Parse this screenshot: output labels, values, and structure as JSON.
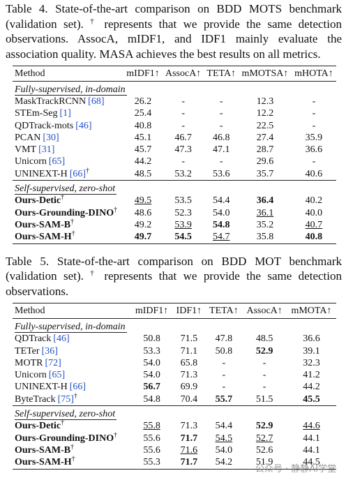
{
  "tables": [
    {
      "caption": {
        "before": "Table 4. State-of-the-art comparison on BDD MOTS benchmark (validation set). ",
        "sup": "†",
        "after": " represents that we provide the same detection observations. AssocA, mIDF1, and IDF1 mainly evaluate the association quality. MASA achieves the best results on all metrics."
      },
      "columns": [
        "Method",
        "mIDF1↑",
        "AssocA↑",
        "TETA↑",
        "mMOTSA↑",
        "mHOTA↑"
      ],
      "groups": [
        {
          "label": "Fully-supervised, in-domain",
          "rows": [
            {
              "method": {
                "name": "MaskTrackRCNN",
                "cite": "[68]"
              },
              "values": [
                "26.2",
                "-",
                "-",
                "12.3",
                "-"
              ]
            },
            {
              "method": {
                "name": "STEm-Seg",
                "cite": "[1]"
              },
              "values": [
                "25.4",
                "-",
                "-",
                "12.2",
                "-"
              ]
            },
            {
              "method": {
                "name": "QDTrack-mots",
                "cite": "[46]"
              },
              "values": [
                "40.8",
                "-",
                "-",
                "22.5",
                "-"
              ]
            },
            {
              "method": {
                "name": "PCAN",
                "cite": "[30]"
              },
              "values": [
                "45.1",
                "46.7",
                "46.8",
                "27.4",
                "35.9"
              ]
            },
            {
              "method": {
                "name": "VMT",
                "cite": "[31]"
              },
              "values": [
                "45.7",
                "47.3",
                "47.1",
                "28.7",
                "36.6"
              ]
            },
            {
              "method": {
                "name": "Unicorn",
                "cite": "[65]"
              },
              "values": [
                "44.2",
                "-",
                "-",
                "29.6",
                "-"
              ]
            },
            {
              "method": {
                "name": "UNINEXT-H",
                "cite": "[66]",
                "sup": "†"
              },
              "values": [
                "48.5",
                "53.2",
                "53.6",
                "35.7",
                "40.6"
              ]
            }
          ]
        },
        {
          "label": "Self-supervised, zero-shot",
          "rows": [
            {
              "method": {
                "name": "Ours-Detic",
                "sup": "†",
                "bold": true
              },
              "values": [
                {
                  "text": "49.5",
                  "underline": true
                },
                "53.5",
                "54.4",
                {
                  "text": "36.4",
                  "bold": true
                },
                "40.2"
              ]
            },
            {
              "method": {
                "name": "Ours-Grounding-DINO",
                "sup": "†",
                "bold": true
              },
              "values": [
                "48.6",
                "52.3",
                "54.0",
                {
                  "text": "36.1",
                  "underline": true
                },
                "40.0"
              ]
            },
            {
              "method": {
                "name": "Ours-SAM-B",
                "sup": "†",
                "bold": true
              },
              "values": [
                "49.2",
                {
                  "text": "53.9",
                  "underline": true
                },
                {
                  "text": "54.8",
                  "bold": true
                },
                "35.2",
                {
                  "text": "40.7",
                  "underline": true
                }
              ]
            },
            {
              "method": {
                "name": "Ours-SAM-H",
                "sup": "†",
                "bold": true
              },
              "values": [
                {
                  "text": "49.7",
                  "bold": true
                },
                {
                  "text": "54.5",
                  "bold": true
                },
                {
                  "text": "54.7",
                  "underline": true
                },
                "35.8",
                {
                  "text": "40.8",
                  "bold": true
                }
              ]
            }
          ]
        }
      ]
    },
    {
      "caption": {
        "before": "Table 5. State-of-the-art comparison on BDD MOT benchmark (validation set). ",
        "sup": "†",
        "after": " represents that we provide the same detection observations."
      },
      "columns": [
        "Method",
        "mIDF1↑",
        "IDF1↑",
        "TETA↑",
        "AssocA↑",
        "mMOTA↑"
      ],
      "groups": [
        {
          "label": "Fully-supervised, in-domain",
          "rows": [
            {
              "method": {
                "name": "QDTrack",
                "cite": "[46]"
              },
              "values": [
                "50.8",
                "71.5",
                "47.8",
                "48.5",
                "36.6"
              ]
            },
            {
              "method": {
                "name": "TETer",
                "cite": "[36]"
              },
              "values": [
                "53.3",
                "71.1",
                "50.8",
                {
                  "text": "52.9",
                  "bold": true
                },
                "39.1"
              ]
            },
            {
              "method": {
                "name": "MOTR",
                "cite": "[72]"
              },
              "values": [
                "54.0",
                "65.8",
                "-",
                "-",
                "32.3"
              ]
            },
            {
              "method": {
                "name": "Unicorn",
                "cite": "[65]"
              },
              "values": [
                "54.0",
                "71.3",
                "-",
                "-",
                "41.2"
              ]
            },
            {
              "method": {
                "name": "UNINEXT-H",
                "cite": "[66]"
              },
              "values": [
                {
                  "text": "56.7",
                  "bold": true
                },
                "69.9",
                "-",
                "-",
                "44.2"
              ]
            },
            {
              "method": {
                "name": "ByteTrack",
                "cite": "[75]",
                "sup": "†"
              },
              "values": [
                "54.8",
                "70.4",
                {
                  "text": "55.7",
                  "bold": true
                },
                "51.5",
                {
                  "text": "45.5",
                  "bold": true
                }
              ]
            }
          ]
        },
        {
          "label": "Self-supervised, zero-shot",
          "rows": [
            {
              "method": {
                "name": "Ours-Detic",
                "sup": "†",
                "bold": true
              },
              "values": [
                {
                  "text": "55.8",
                  "underline": true
                },
                "71.3",
                "54.4",
                {
                  "text": "52.9",
                  "bold": true
                },
                {
                  "text": "44.6",
                  "underline": true
                }
              ]
            },
            {
              "method": {
                "name": "Ours-Grounding-DINO",
                "sup": "†",
                "bold": true
              },
              "values": [
                "55.6",
                {
                  "text": "71.7",
                  "bold": true
                },
                {
                  "text": "54.5",
                  "underline": true
                },
                {
                  "text": "52.7",
                  "underline": true
                },
                "44.1"
              ]
            },
            {
              "method": {
                "name": "Ours-SAM-B",
                "sup": "†",
                "bold": true
              },
              "values": [
                "55.6",
                {
                  "text": "71.6",
                  "underline": true
                },
                "54.0",
                "52.6",
                "44.1"
              ]
            },
            {
              "method": {
                "name": "Ours-SAM-H",
                "sup": "†",
                "bold": true
              },
              "values": [
                "55.3",
                {
                  "text": "71.7",
                  "bold": true
                },
                "54.2",
                "51.9",
                "44.5"
              ]
            }
          ]
        }
      ]
    }
  ],
  "watermark": "公众号 · 静静AI学堂"
}
